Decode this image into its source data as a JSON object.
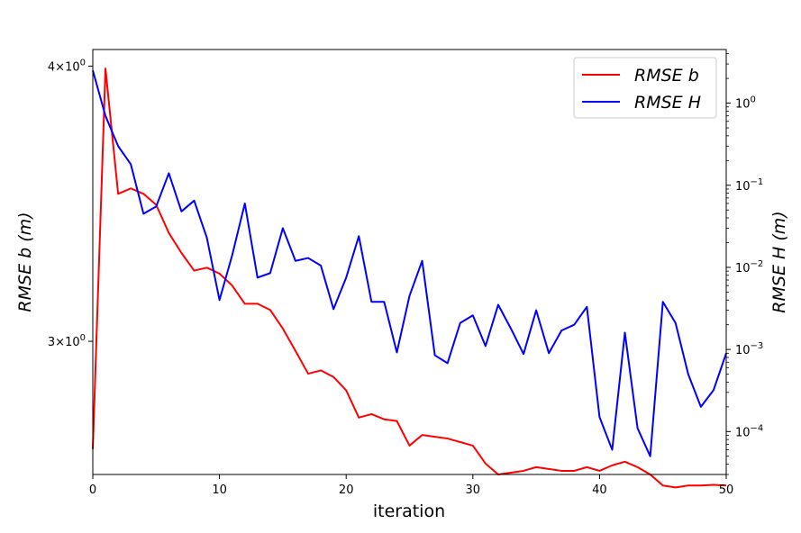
{
  "chart_data": {
    "type": "line",
    "title": "",
    "xlabel": "iteration",
    "ylabel_left": "RMSE b (m)",
    "ylabel_right": "RMSE H (m)",
    "xlim": [
      0,
      50
    ],
    "ylim_left": [
      2.61,
      4.07
    ],
    "ylim_right": [
      3e-05,
      4.5
    ],
    "yscale_left": "log",
    "yscale_right": "log",
    "grid": false,
    "legend_position": "top-right",
    "x_ticks": [
      0,
      10,
      20,
      30,
      40,
      50
    ],
    "y_left_ticks": [
      {
        "value": 3,
        "base": "3",
        "exp": "0"
      },
      {
        "value": 4,
        "base": "4",
        "exp": "0"
      }
    ],
    "y_right_ticks": [
      {
        "value": 0.0001,
        "base": "10",
        "exp": "−4"
      },
      {
        "value": 0.001,
        "base": "10",
        "exp": "−3"
      },
      {
        "value": 0.01,
        "base": "10",
        "exp": "−2"
      },
      {
        "value": 0.1,
        "base": "10",
        "exp": "−1"
      },
      {
        "value": 1,
        "base": "10",
        "exp": "0"
      }
    ],
    "x": [
      0,
      1,
      2,
      3,
      4,
      5,
      6,
      7,
      8,
      9,
      10,
      11,
      12,
      13,
      14,
      15,
      16,
      17,
      18,
      19,
      20,
      21,
      22,
      23,
      24,
      25,
      26,
      27,
      28,
      29,
      30,
      31,
      32,
      33,
      34,
      35,
      36,
      37,
      38,
      39,
      40,
      41,
      42,
      43,
      44,
      45,
      46,
      47,
      48,
      49,
      50
    ],
    "series": [
      {
        "name": "RMSE b",
        "axis": "left",
        "color": "#ff0000",
        "values": [
          2.68,
          3.99,
          3.5,
          3.52,
          3.5,
          3.46,
          3.36,
          3.29,
          3.23,
          3.24,
          3.22,
          3.18,
          3.12,
          3.12,
          3.1,
          3.04,
          2.97,
          2.9,
          2.91,
          2.89,
          2.85,
          2.77,
          2.78,
          2.765,
          2.76,
          2.69,
          2.72,
          2.715,
          2.71,
          2.7,
          2.69,
          2.64,
          2.61,
          2.615,
          2.62,
          2.63,
          2.625,
          2.62,
          2.62,
          2.63,
          2.62,
          2.635,
          2.645,
          2.63,
          2.61,
          2.58,
          2.575,
          2.58,
          2.58,
          2.582,
          2.58
        ]
      },
      {
        "name": "RMSE H",
        "axis": "right",
        "color": "#0000ff",
        "values": [
          2.5,
          0.7,
          0.3,
          0.18,
          0.045,
          0.055,
          0.14,
          0.048,
          0.065,
          0.023,
          0.004,
          0.014,
          0.06,
          0.0075,
          0.0085,
          0.03,
          0.012,
          0.013,
          0.0105,
          0.0031,
          0.0075,
          0.024,
          0.0038,
          0.0038,
          0.00092,
          0.0045,
          0.012,
          0.00085,
          0.00068,
          0.0021,
          0.0026,
          0.0011,
          0.0035,
          0.0018,
          0.00088,
          0.003,
          0.0009,
          0.0017,
          0.002,
          0.0033,
          0.00015,
          6e-05,
          0.0016,
          0.00011,
          5e-05,
          0.0038,
          0.0021,
          0.0005,
          0.0002,
          0.00032,
          0.0009
        ]
      }
    ]
  }
}
